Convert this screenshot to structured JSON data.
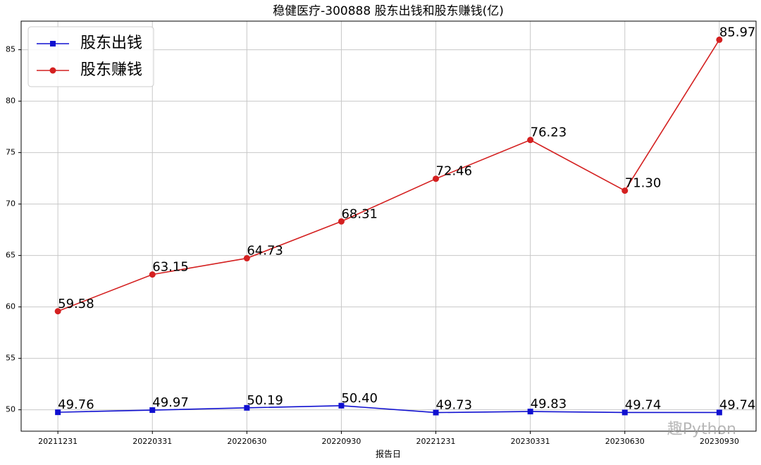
{
  "chart_data": {
    "type": "line",
    "title": "稳健医疗-300888 股东出钱和股东赚钱(亿)",
    "xlabel": "报告日",
    "categories": [
      "20211231",
      "20220331",
      "20220630",
      "20220930",
      "20221231",
      "20230331",
      "20230630",
      "20230930"
    ],
    "series": [
      {
        "name": "股东出钱",
        "color": "#1010d0",
        "marker": "square",
        "values": [
          49.76,
          49.97,
          50.19,
          50.4,
          49.73,
          49.83,
          49.74,
          49.74
        ],
        "value_labels": [
          "49.76",
          "49.97",
          "50.19",
          "50.40",
          "49.73",
          "49.83",
          "49.74",
          "49.74"
        ]
      },
      {
        "name": "股东赚钱",
        "color": "#d42020",
        "marker": "circle",
        "values": [
          59.58,
          63.15,
          64.73,
          68.31,
          72.46,
          76.23,
          71.3,
          85.97
        ],
        "value_labels": [
          "59.58",
          "63.15",
          "64.73",
          "68.31",
          "72.46",
          "76.23",
          "71.30",
          "85.97"
        ]
      }
    ],
    "ylim": [
      47.92,
      87.78
    ],
    "yticks": [
      50,
      55,
      60,
      65,
      70,
      75,
      80,
      85
    ],
    "grid": true,
    "legend": "upper-left",
    "watermark": "趣Python"
  }
}
